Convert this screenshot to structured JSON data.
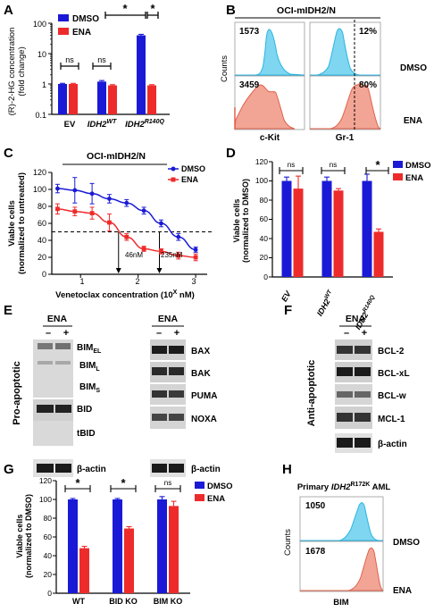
{
  "panels": {
    "A": "A",
    "B": "B",
    "C": "C",
    "D": "D",
    "E": "E",
    "F": "F",
    "G": "G",
    "H": "H"
  },
  "colors": {
    "dmso": "#1a1ad6",
    "ena": "#ee2b2b",
    "cyan": "#7fd6f0",
    "cyan_line": "#2bb5e3",
    "salmon": "#f2a595",
    "salmon_line": "#e2604c",
    "blot_bg": "#d9d9d9",
    "blot_band": "#3a3a3a"
  },
  "legend": {
    "dmso": "DMSO",
    "ena": "ENA"
  },
  "sig": {
    "star": "*",
    "ns": "ns"
  },
  "panel_a": {
    "ylabel_1": "(R)-2-HG concentration",
    "ylabel_2": "(fold change)",
    "ytick_labels": [
      "0.1",
      "1",
      "10",
      "100"
    ],
    "xlabel_ev": "EV",
    "xlabel_wt_base": "IDH2",
    "xlabel_wt_sup": "WT",
    "xlabel_mut_base": "IDH2",
    "xlabel_mut_sup": "R140Q"
  },
  "panel_b": {
    "title": "OCI-mIDH2/N",
    "ylabel": "Counts",
    "xlabel_ckit": "c-Kit",
    "xlabel_gr1": "Gr-1",
    "row_dmso": "DMSO",
    "row_ena": "ENA",
    "ckit_dmso_mfi": "1573",
    "ckit_ena_mfi": "3459",
    "gr1_dmso_pct": "12%",
    "gr1_ena_pct": "80%"
  },
  "panel_c": {
    "title": "OCI-mIDH2/N",
    "ylabel_1": "Viable cells",
    "ylabel_2": "(normalized to untreated)",
    "xlabel": "Venetoclax concentration (10",
    "xlabel_sup": "X",
    "xlabel_end": " nM)",
    "ic50_ena": "46nM",
    "ic50_dmso": "235nM",
    "xtick_labels": [
      "1",
      "2",
      "3"
    ],
    "ytick_labels": [
      "0",
      "20",
      "40",
      "60",
      "80",
      "100",
      "120"
    ]
  },
  "panel_d": {
    "ylabel_1": "Viable cells",
    "ylabel_2": "(normalized to DMSO)",
    "xlabel_ev": "EV",
    "xlabel_wt_base": "IDH2",
    "xlabel_wt_sup": "WT",
    "xlabel_mut_base": "IDH2",
    "xlabel_mut_sup": "R140Q",
    "ytick_labels": [
      "0",
      "20",
      "40",
      "60",
      "80",
      "100",
      "120"
    ]
  },
  "panel_e": {
    "header": "ENA",
    "minus": "–",
    "plus": "+",
    "side_label": "Pro-apoptotic",
    "left_labels": {
      "bim_el": "BIM",
      "bim_el_sub": "EL",
      "bim_l": "BIM",
      "bim_l_sub": "L",
      "bim_s": "BIM",
      "bim_s_sub": "S",
      "bid": "BID",
      "tbid": "tBID",
      "actin": "β-actin"
    },
    "right_labels": [
      "BAX",
      "BAK",
      "PUMA",
      "NOXA",
      "β-actin"
    ]
  },
  "panel_f": {
    "header": "ENA",
    "minus": "–",
    "plus": "+",
    "side_label": "Anti-apoptotic",
    "labels": [
      "BCL-2",
      "BCL-xL",
      "BCL-w",
      "MCL-1",
      "β-actin"
    ]
  },
  "panel_g": {
    "ylabel_1": "Viable cells",
    "ylabel_2": "(normalized to DMSO)",
    "categories": [
      "WT",
      "BID KO",
      "BIM KO"
    ],
    "ytick_labels": [
      "0",
      "20",
      "40",
      "60",
      "80",
      "100",
      "120"
    ]
  },
  "panel_h": {
    "title_pre": "Primary ",
    "title_gene": "IDH2",
    "title_sup": "R172K",
    "title_post": " AML",
    "ylabel": "Counts",
    "xlabel": "BIM",
    "dmso_mfi": "1050",
    "ena_mfi": "1678",
    "row_dmso": "DMSO",
    "row_ena": "ENA"
  },
  "chart_data": [
    {
      "type": "bar",
      "panel": "A",
      "yscale": "log",
      "ylim": [
        0.1,
        100
      ],
      "categories": [
        "EV",
        "IDH2 WT",
        "IDH2 R140Q"
      ],
      "series": [
        {
          "name": "DMSO",
          "values": [
            1.0,
            1.2,
            40.0
          ],
          "err": [
            0.05,
            0.1,
            3.0
          ]
        },
        {
          "name": "ENA",
          "values": [
            1.0,
            0.9,
            0.9
          ],
          "err": [
            0.05,
            0.05,
            0.05
          ]
        }
      ]
    },
    {
      "type": "line",
      "panel": "C",
      "xlim": [
        0.5,
        3.2
      ],
      "ylim": [
        0,
        120
      ],
      "series": [
        {
          "name": "DMSO",
          "x": [
            0.6,
            0.9,
            1.2,
            1.5,
            1.8,
            2.1,
            2.4,
            2.7,
            3.0
          ],
          "y": [
            101,
            99,
            95,
            89,
            84,
            75,
            60,
            44,
            29
          ],
          "err": [
            5,
            15,
            12,
            5,
            4,
            4,
            4,
            4,
            3
          ]
        },
        {
          "name": "ENA",
          "x": [
            0.6,
            0.9,
            1.2,
            1.5,
            1.8,
            2.1,
            2.4,
            2.7,
            3.0
          ],
          "y": [
            77,
            74,
            72,
            61,
            44,
            30,
            27,
            22,
            20
          ],
          "err": [
            6,
            5,
            7,
            10,
            4,
            3,
            3,
            4,
            4
          ]
        }
      ],
      "reference_y": 50,
      "ic50": [
        {
          "x": 1.66,
          "label": "46nM"
        },
        {
          "x": 2.37,
          "label": "235nM"
        }
      ]
    },
    {
      "type": "bar",
      "panel": "D",
      "ylim": [
        0,
        120
      ],
      "categories": [
        "EV",
        "IDH2 WT",
        "IDH2 R140Q"
      ],
      "series": [
        {
          "name": "DMSO",
          "values": [
            100,
            100,
            100
          ],
          "err": [
            4,
            4,
            7
          ]
        },
        {
          "name": "ENA",
          "values": [
            92,
            90,
            47
          ],
          "err": [
            13,
            2,
            3
          ]
        }
      ]
    },
    {
      "type": "bar",
      "panel": "G",
      "ylim": [
        0,
        120
      ],
      "categories": [
        "WT",
        "BID KO",
        "BIM KO"
      ],
      "series": [
        {
          "name": "DMSO",
          "values": [
            100,
            100,
            100
          ],
          "err": [
            1,
            1,
            3
          ]
        },
        {
          "name": "ENA",
          "values": [
            48,
            69,
            93
          ],
          "err": [
            2,
            2,
            5
          ]
        }
      ]
    }
  ]
}
